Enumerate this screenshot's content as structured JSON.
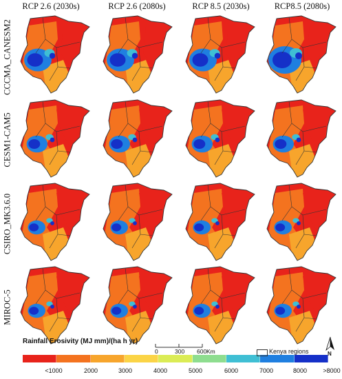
{
  "columns": [
    "RCP 2.6 (2030s)",
    "RCP 2.6 (2080s)",
    "RCP 8.5 (2030s)",
    "RCP8.5 (2080s)"
  ],
  "rows": [
    "CCCMA_CANESM2",
    "CESM1-CAM5",
    "CSIRO_MK3.6.0",
    "MIROC-5"
  ],
  "legend": {
    "title": "Rainfall Erosivity (MJ mm)/(ha h yr)",
    "ticks": [
      "<1000",
      "2000",
      "3000",
      "4000",
      "5000",
      "6000",
      "7000",
      "8000",
      ">8000"
    ],
    "colors": [
      "#e8231b",
      "#f4731f",
      "#f7a52c",
      "#fbd446",
      "#dbec55",
      "#8edd8f",
      "#3fbfd4",
      "#1f7fe0",
      "#1530c8"
    ]
  },
  "scale": {
    "labels": [
      "0",
      "300",
      "600"
    ],
    "unit": "Km"
  },
  "region_legend": "Kenya regions",
  "north_label": "N"
}
